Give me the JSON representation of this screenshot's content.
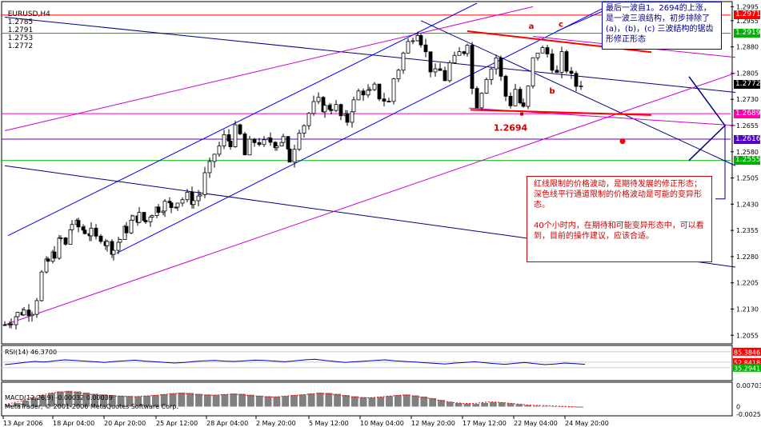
{
  "header": {
    "symbol": "EURUSD,H4",
    "open": "1.2785",
    "high": "1.2791",
    "low": "1.2753",
    "close": "1.2772"
  },
  "colors": {
    "bull": "#000000",
    "bear": "#000000",
    "red": "#ff0000",
    "blue": "#0000cc",
    "magenta": "#cc00cc",
    "green": "#00b000",
    "panel_bg": "#ffffff"
  },
  "notes": {
    "top": "最后一波自1。2694的上涨，是一波三浪结构，初步排除了(a)，(b)，(c) 三波结构的锯齿形修正形态",
    "main": "红线限制的价格波动，是期待发展的修正形态；\n深色线平行通道限制的价格波动是可能的变异形态。\n\n40个小时内，在期待和可能变异形态中，可以看到，目前的操作建议，应该合适。"
  },
  "chart_data": [
    {
      "type": "candlestick",
      "title": "EURUSD,H4",
      "ylim": [
        1.2035,
        1.3005
      ],
      "y_ticks": [
        "1.2995",
        "1.2955",
        "1.2880",
        "1.2805",
        "1.2730",
        "1.2655",
        "1.2580",
        "1.2505",
        "1.2430",
        "1.2355",
        "1.2280",
        "1.2205",
        "1.2130",
        "1.2055"
      ],
      "x_ticks": [
        "13 Apr 2006",
        "18 Apr 04:00",
        "20 Apr 20:00",
        "25 Apr 12:00",
        "28 Apr 04:00",
        "2 May 20:00",
        "5 May 12:00",
        "10 May 04:00",
        "12 May 20:00",
        "17 May 12:00",
        "22 May 04:00",
        "24 May 20:00"
      ],
      "price_labels": [
        {
          "value": "1.2971",
          "color": "#ff0000"
        },
        {
          "value": "1.2919",
          "color": "#00b000"
        },
        {
          "value": "1.2772",
          "color": "#000000"
        },
        {
          "value": "1.2689",
          "color": "#ff00aa"
        },
        {
          "value": "1.2616",
          "color": "#5500cc"
        },
        {
          "value": "1.2555",
          "color": "#00b000"
        }
      ],
      "annotations": [
        {
          "text": "a",
          "price": 1.2932
        },
        {
          "text": "b",
          "price": 1.2746
        },
        {
          "text": "c",
          "price": 1.2938
        },
        {
          "text": "1.2694",
          "price": 1.264
        }
      ],
      "close_path": [
        [
          0,
          1.2085
        ],
        [
          8,
          1.21
        ],
        [
          16,
          1.2115
        ],
        [
          24,
          1.2125
        ],
        [
          34,
          1.2128
        ],
        [
          40,
          1.2165
        ],
        [
          46,
          1.223
        ],
        [
          54,
          1.2265
        ],
        [
          62,
          1.229
        ],
        [
          70,
          1.233
        ],
        [
          76,
          1.231
        ],
        [
          84,
          1.2375
        ],
        [
          92,
          1.2365
        ],
        [
          100,
          1.2355
        ],
        [
          108,
          1.2345
        ],
        [
          114,
          1.233
        ],
        [
          120,
          1.234
        ],
        [
          128,
          1.2315
        ],
        [
          136,
          1.23
        ],
        [
          144,
          1.233
        ],
        [
          152,
          1.236
        ],
        [
          160,
          1.2385
        ],
        [
          168,
          1.2395
        ],
        [
          176,
          1.238
        ],
        [
          184,
          1.241
        ],
        [
          192,
          1.242
        ],
        [
          200,
          1.243
        ],
        [
          208,
          1.2425
        ],
        [
          216,
          1.244
        ],
        [
          222,
          1.2445
        ],
        [
          228,
          1.245
        ],
        [
          236,
          1.244
        ],
        [
          244,
          1.246
        ],
        [
          250,
          1.251
        ],
        [
          256,
          1.2535
        ],
        [
          262,
          1.2575
        ],
        [
          268,
          1.2595
        ],
        [
          274,
          1.262
        ],
        [
          282,
          1.261
        ],
        [
          288,
          1.264
        ],
        [
          294,
          1.2625
        ],
        [
          300,
          1.257
        ],
        [
          306,
          1.26
        ],
        [
          312,
          1.261
        ],
        [
          318,
          1.261
        ],
        [
          324,
          1.26
        ],
        [
          332,
          1.261
        ],
        [
          340,
          1.2605
        ],
        [
          348,
          1.2615
        ],
        [
          356,
          1.256
        ],
        [
          362,
          1.26
        ],
        [
          368,
          1.265
        ],
        [
          374,
          1.266
        ],
        [
          380,
          1.269
        ],
        [
          386,
          1.271
        ],
        [
          392,
          1.272
        ],
        [
          400,
          1.2705
        ],
        [
          408,
          1.271
        ],
        [
          414,
          1.2705
        ],
        [
          420,
          1.268
        ],
        [
          428,
          1.267
        ],
        [
          436,
          1.272
        ],
        [
          442,
          1.275
        ],
        [
          448,
          1.2755
        ],
        [
          456,
          1.2745
        ],
        [
          462,
          1.276
        ],
        [
          468,
          1.274
        ],
        [
          474,
          1.273
        ],
        [
          480,
          1.272
        ],
        [
          486,
          1.279
        ],
        [
          492,
          1.282
        ],
        [
          498,
          1.286
        ],
        [
          504,
          1.289
        ],
        [
          510,
          1.2915
        ],
        [
          516,
          1.293
        ],
        [
          520,
          1.29
        ],
        [
          526,
          1.286
        ],
        [
          532,
          1.282
        ],
        [
          538,
          1.28
        ],
        [
          544,
          1.281
        ],
        [
          550,
          1.279
        ],
        [
          556,
          1.283
        ],
        [
          562,
          1.284
        ],
        [
          568,
          1.286
        ],
        [
          574,
          1.287
        ],
        [
          578,
          1.29
        ],
        [
          584,
          1.276
        ],
        [
          590,
          1.272
        ],
        [
          596,
          1.276
        ],
        [
          602,
          1.28
        ],
        [
          608,
          1.282
        ],
        [
          614,
          1.285
        ],
        [
          620,
          1.279
        ],
        [
          626,
          1.274
        ],
        [
          632,
          1.272
        ],
        [
          638,
          1.276
        ],
        [
          644,
          1.272
        ],
        [
          648,
          1.27
        ],
        [
          654,
          1.276
        ],
        [
          660,
          1.284
        ],
        [
          666,
          1.287
        ],
        [
          672,
          1.287
        ],
        [
          678,
          1.286
        ],
        [
          684,
          1.283
        ],
        [
          690,
          1.28
        ],
        [
          696,
          1.285
        ],
        [
          702,
          1.282
        ],
        [
          708,
          1.279
        ],
        [
          714,
          1.277
        ],
        [
          720,
          1.278
        ],
        [
          726,
          1.2772
        ]
      ]
    },
    {
      "type": "line",
      "title": "RSI(14) 46.3700",
      "ylim": [
        0,
        100
      ],
      "levels": [
        "85.3846",
        "52.8418",
        "35.2941"
      ],
      "values": [
        45,
        48,
        52,
        55,
        53,
        57,
        60,
        58,
        56,
        54,
        52,
        55,
        57,
        59,
        56,
        54,
        52,
        50,
        52,
        55,
        57,
        58,
        56,
        55,
        57,
        59,
        58,
        56,
        54,
        57,
        60,
        62,
        58,
        55,
        52,
        54,
        56,
        58,
        60,
        57,
        55,
        53,
        51,
        49,
        47,
        50,
        52,
        54,
        51,
        48,
        46,
        49,
        52,
        48,
        45,
        47,
        50,
        48,
        46
      ]
    },
    {
      "type": "bar",
      "title": "MACD(12,26,9) -0.00032 0.00039",
      "ylim": [
        -0.0025,
        0.0075
      ],
      "y_ticks": [
        "0.007034",
        "0",
        "-0.002531"
      ],
      "values": [
        0.0005,
        0.0012,
        0.002,
        0.003,
        0.0038,
        0.0045,
        0.005,
        0.0052,
        0.005,
        0.0046,
        0.0042,
        0.004,
        0.0038,
        0.0036,
        0.0035,
        0.0034,
        0.0036,
        0.0038,
        0.0041,
        0.0044,
        0.0046,
        0.0045,
        0.0042,
        0.004,
        0.0039,
        0.0041,
        0.0043,
        0.0042,
        0.0039,
        0.0036,
        0.0034,
        0.0033,
        0.0035,
        0.0038,
        0.004,
        0.0043,
        0.0046,
        0.0045,
        0.0042,
        0.0038,
        0.0034,
        0.0031,
        0.003,
        0.0032,
        0.0035,
        0.0038,
        0.004,
        0.0037,
        0.0033,
        0.0028,
        0.0022,
        0.0016,
        0.0012,
        0.001,
        0.0009,
        0.0012,
        0.0015,
        0.0014,
        0.0011,
        0.0008,
        0.0005,
        0.0003,
        0.0002,
        0.0001,
        -0.0001,
        -0.0002,
        -0.0003
      ],
      "copyright": "MetaTrader, © 2001-2006 MetaQuotes Software Corp."
    }
  ]
}
